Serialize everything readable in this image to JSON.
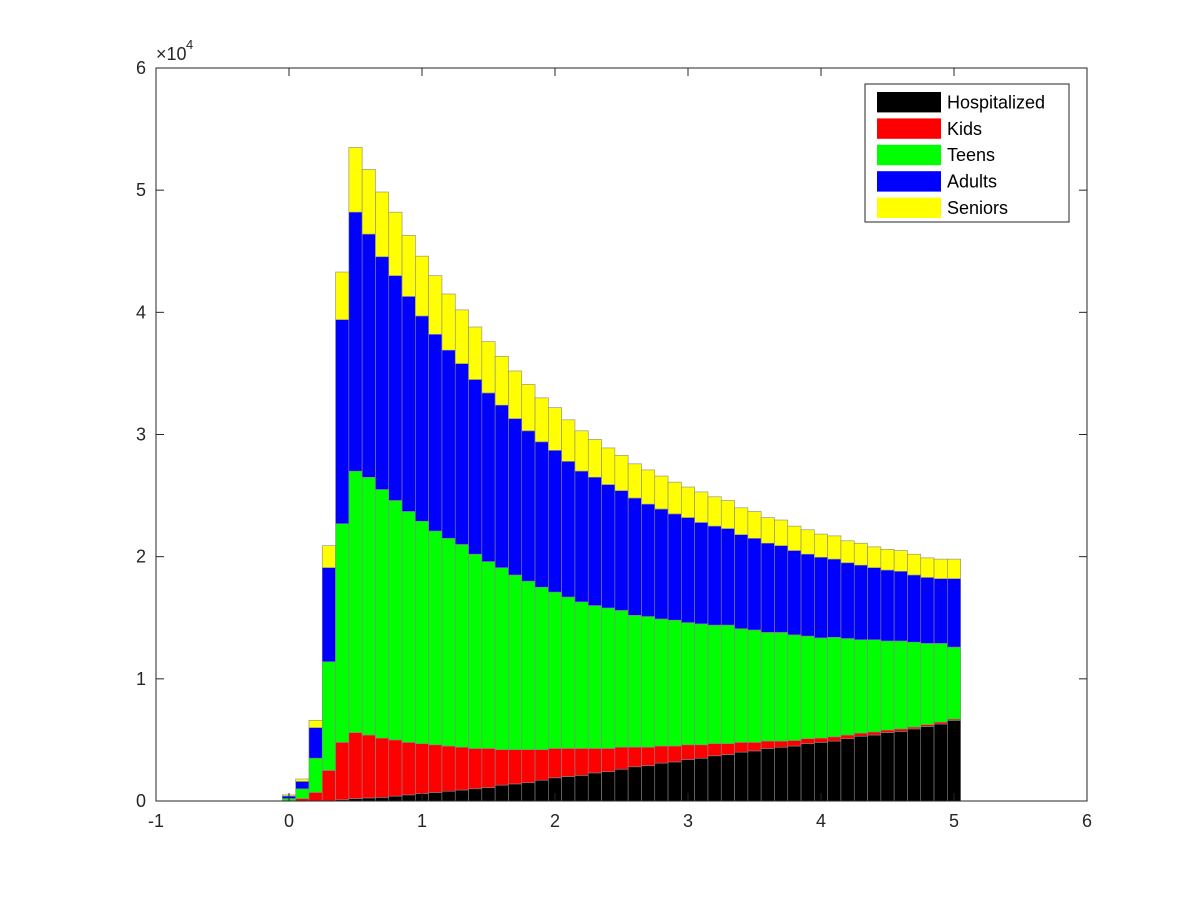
{
  "chart_data": {
    "type": "bar",
    "stacked": true,
    "xlim": [
      -1,
      6
    ],
    "ylim": [
      0,
      60000
    ],
    "x_ticks": [
      -1,
      0,
      1,
      2,
      3,
      4,
      5,
      6
    ],
    "y_ticks": [
      0,
      10000,
      20000,
      30000,
      40000,
      50000,
      60000
    ],
    "x_tick_labels": [
      "-1",
      "0",
      "1",
      "2",
      "3",
      "4",
      "5",
      "6"
    ],
    "y_tick_labels": [
      "0",
      "1",
      "2",
      "3",
      "4",
      "5",
      "6"
    ],
    "y_exponent_label": "×10",
    "y_exponent_power": "4",
    "bar_width": 0.1,
    "grid": false,
    "legend_position": "top-right",
    "x": [
      0.0,
      0.1,
      0.2,
      0.3,
      0.4,
      0.5,
      0.6,
      0.7,
      0.8,
      0.9,
      1.0,
      1.1,
      1.2,
      1.3,
      1.4,
      1.5,
      1.6,
      1.7,
      1.8,
      1.9,
      2.0,
      2.1,
      2.2,
      2.3,
      2.4,
      2.5,
      2.6,
      2.7,
      2.8,
      2.9,
      3.0,
      3.1,
      3.2,
      3.3,
      3.4,
      3.5,
      3.6,
      3.7,
      3.8,
      3.9,
      4.0,
      4.1,
      4.2,
      4.3,
      4.4,
      4.5,
      4.6,
      4.7,
      4.8,
      4.9,
      5.0
    ],
    "series": [
      {
        "name": "Hospitalized",
        "color": "#000000",
        "values": [
          0,
          0,
          0,
          0,
          100,
          200,
          250,
          300,
          400,
          500,
          600,
          700,
          800,
          900,
          1000,
          1100,
          1300,
          1400,
          1500,
          1700,
          1900,
          2000,
          2100,
          2300,
          2400,
          2600,
          2800,
          2900,
          3100,
          3200,
          3400,
          3500,
          3700,
          3800,
          4000,
          4100,
          4300,
          4400,
          4500,
          4700,
          4800,
          4900,
          5100,
          5300,
          5400,
          5600,
          5700,
          5900,
          6100,
          6300,
          6600
        ]
      },
      {
        "name": "Kids",
        "color": "#ff0000",
        "values": [
          0,
          200,
          700,
          2500,
          4700,
          5400,
          5150,
          4850,
          4600,
          4300,
          4100,
          3900,
          3700,
          3500,
          3300,
          3200,
          2900,
          2800,
          2700,
          2500,
          2400,
          2300,
          2200,
          2000,
          1900,
          1800,
          1600,
          1500,
          1400,
          1300,
          1200,
          1100,
          1000,
          900,
          800,
          700,
          600,
          500,
          450,
          400,
          350,
          350,
          300,
          250,
          250,
          200,
          200,
          150,
          150,
          150,
          100
        ]
      },
      {
        "name": "Teens",
        "color": "#00ff00",
        "values": [
          200,
          800,
          2800,
          8900,
          17900,
          21400,
          21100,
          20350,
          19600,
          18900,
          18200,
          17500,
          17000,
          16600,
          15900,
          15300,
          14900,
          14300,
          13800,
          13300,
          12800,
          12400,
          12000,
          11700,
          11500,
          11200,
          10800,
          10700,
          10400,
          10300,
          10000,
          9900,
          9700,
          9700,
          9300,
          9200,
          8900,
          8900,
          8650,
          8400,
          8200,
          8150,
          7900,
          7650,
          7550,
          7300,
          7200,
          6950,
          6650,
          6450,
          5900
        ]
      },
      {
        "name": "Adults",
        "color": "#0000ff",
        "values": [
          200,
          600,
          2500,
          7700,
          16700,
          21200,
          19900,
          19050,
          18400,
          17600,
          16800,
          16100,
          15400,
          14800,
          14300,
          13800,
          13300,
          12800,
          12300,
          11900,
          11600,
          11100,
          10700,
          10500,
          10100,
          9800,
          9600,
          9200,
          9000,
          8700,
          8600,
          8300,
          8100,
          7900,
          7700,
          7500,
          7300,
          7100,
          6900,
          6700,
          6600,
          6400,
          6200,
          6100,
          5900,
          5800,
          5700,
          5500,
          5400,
          5300,
          5600
        ]
      },
      {
        "name": "Seniors",
        "color": "#ffff00",
        "values": [
          100,
          200,
          600,
          1800,
          3900,
          5300,
          5300,
          5300,
          5200,
          5000,
          4900,
          4800,
          4600,
          4400,
          4300,
          4200,
          4000,
          3900,
          3800,
          3600,
          3500,
          3400,
          3300,
          3100,
          3000,
          2900,
          2800,
          2800,
          2700,
          2600,
          2500,
          2500,
          2400,
          2300,
          2200,
          2200,
          2100,
          2100,
          2000,
          2000,
          1900,
          1900,
          1800,
          1800,
          1700,
          1700,
          1700,
          1700,
          1600,
          1600,
          1600
        ]
      }
    ]
  }
}
